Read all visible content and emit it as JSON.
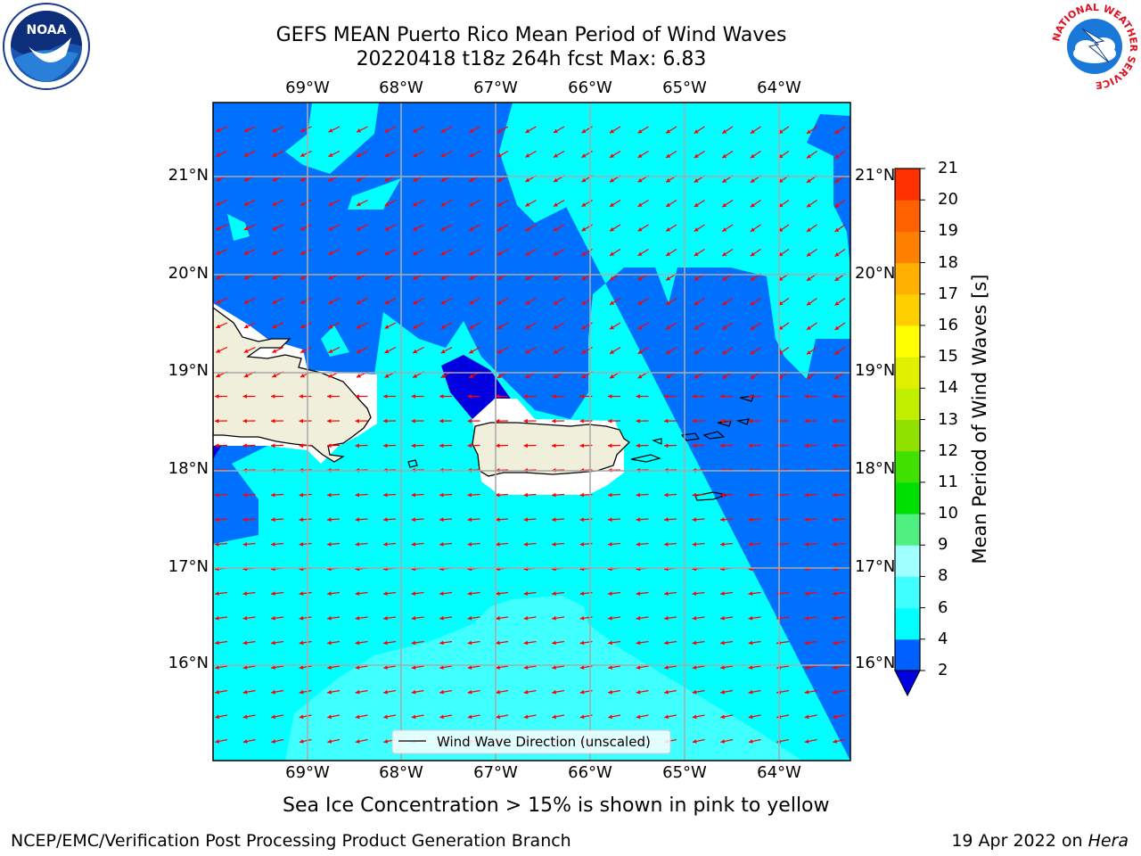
{
  "header": {
    "title_line1": "GEFS MEAN Puerto Rico Mean Period of Wind Waves",
    "title_line2": "20220418 t18z 264h fcst   Max: 6.83"
  },
  "logos": {
    "left": "NOAA",
    "left_ring": "NATIONAL OCEANIC AND ATMOSPHERIC ADMINISTRATION · U.S. DEPARTMENT OF COMMERCE",
    "right_ring": "NATIONAL WEATHER SERVICE"
  },
  "map": {
    "lon_labels": [
      "69°W",
      "68°W",
      "67°W",
      "66°W",
      "65°W",
      "64°W"
    ],
    "lat_labels": [
      "21°N",
      "20°N",
      "19°N",
      "18°N",
      "17°N",
      "16°N"
    ],
    "legend_label": "Wind Wave Direction (unscaled)",
    "arrow_color": "#ff0000"
  },
  "colorbar": {
    "label": "Mean Period of Wind Waves [s]",
    "ticks": [
      "2",
      "4",
      "6",
      "8",
      "9",
      "10",
      "11",
      "12",
      "13",
      "14",
      "15",
      "16",
      "17",
      "18",
      "19",
      "20",
      "21"
    ],
    "colors": [
      "#0060ff",
      "#00ffff",
      "#40ffff",
      "#a0ffff",
      "#50f080",
      "#00e000",
      "#40e000",
      "#90e000",
      "#c0f000",
      "#e0f000",
      "#ffff00",
      "#ffd000",
      "#ffb000",
      "#ff8000",
      "#ff6000",
      "#ff3000",
      "#ff0000"
    ],
    "under_color": "#0000e0"
  },
  "footer": {
    "sea_ice_note": "Sea Ice Concentration > 15% is shown in pink to yellow",
    "producer": "NCEP/EMC/Verification Post Processing Product Generation Branch",
    "date": "19 Apr 2022 on",
    "machine": "Hera"
  }
}
